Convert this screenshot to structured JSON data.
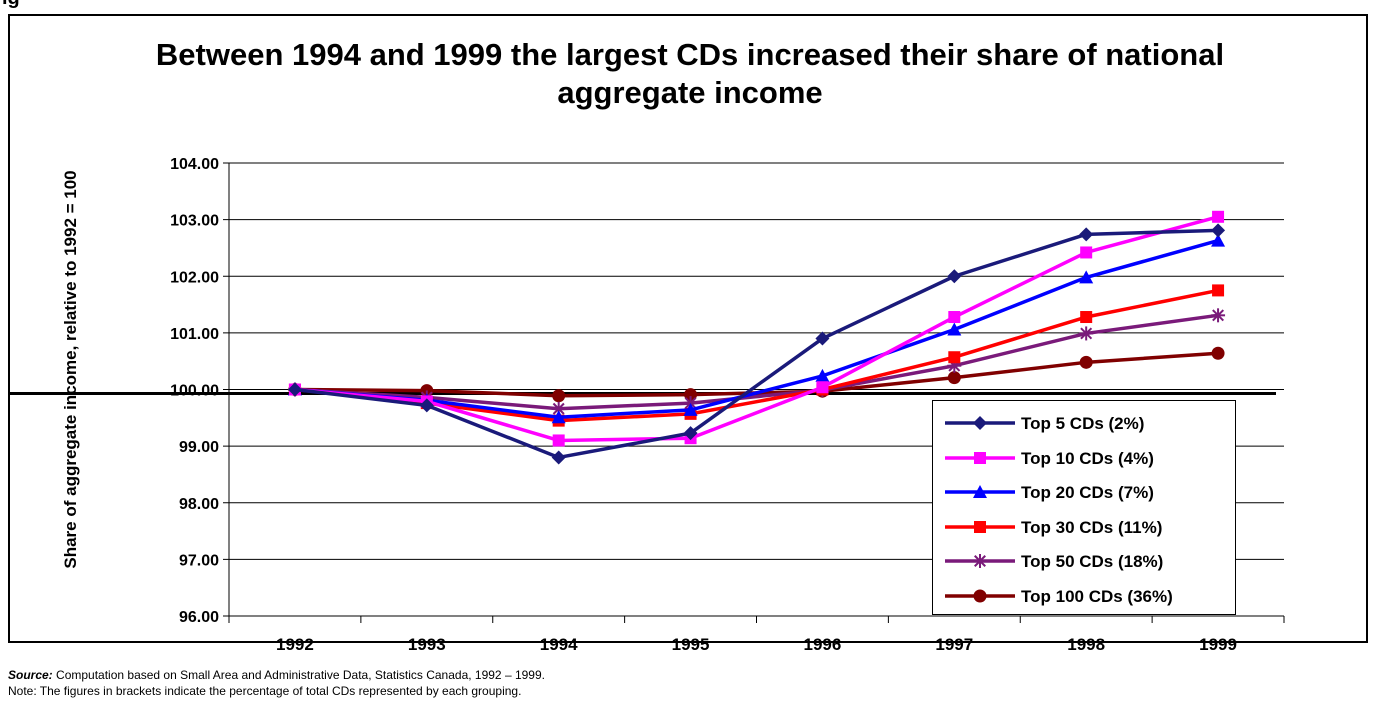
{
  "figure": {
    "label": "ig"
  },
  "chart_data": {
    "type": "line",
    "title": "Between 1994 and 1999 the largest CDs increased their share of national aggregate income",
    "xlabel": "",
    "ylabel": "Share of aggregate income, relative to 1992 = 100",
    "categories": [
      "1992",
      "1993",
      "1994",
      "1995",
      "1996",
      "1997",
      "1998",
      "1999"
    ],
    "ylim": [
      96,
      104
    ],
    "yticks": [
      "96.00",
      "97.00",
      "98.00",
      "99.00",
      "100.00",
      "101.00",
      "102.00",
      "103.00",
      "104.00"
    ],
    "grid": "horizontal",
    "reference_line": 99.93,
    "legend_position": "bottom-right",
    "series": [
      {
        "name": "Top 5 CDs (2%)",
        "color": "#1a1a7a",
        "marker": "diamond",
        "values": [
          100.0,
          99.72,
          98.8,
          99.23,
          100.9,
          102.0,
          102.74,
          102.81
        ]
      },
      {
        "name": "Top 10 CDs (4%)",
        "color": "#ff00ff",
        "marker": "square",
        "values": [
          100.0,
          99.79,
          99.1,
          99.14,
          100.04,
          101.28,
          102.42,
          103.05
        ]
      },
      {
        "name": "Top 20 CDs (7%)",
        "color": "#0000ff",
        "marker": "triangle",
        "values": [
          100.0,
          99.81,
          99.51,
          99.64,
          100.24,
          101.06,
          101.98,
          102.63
        ]
      },
      {
        "name": "Top 30 CDs (11%)",
        "color": "#ff0000",
        "marker": "square",
        "values": [
          100.0,
          99.76,
          99.45,
          99.57,
          100.0,
          100.57,
          101.28,
          101.75
        ]
      },
      {
        "name": "Top 50 CDs (18%)",
        "color": "#7a1a7a",
        "marker": "star",
        "values": [
          100.0,
          99.86,
          99.66,
          99.76,
          99.99,
          100.42,
          100.99,
          101.31
        ]
      },
      {
        "name": "Top 100 CDs (36%)",
        "color": "#800000",
        "marker": "circle",
        "values": [
          100.0,
          99.98,
          99.89,
          99.91,
          99.97,
          100.21,
          100.48,
          100.64
        ]
      }
    ]
  },
  "notes": {
    "source_label": "Source:",
    "source_text": " Computation based on Small Area and Administrative Data, Statistics Canada, 1992 – 1999.",
    "note_text": "Note: The figures in brackets indicate the percentage of total CDs represented by each grouping."
  }
}
